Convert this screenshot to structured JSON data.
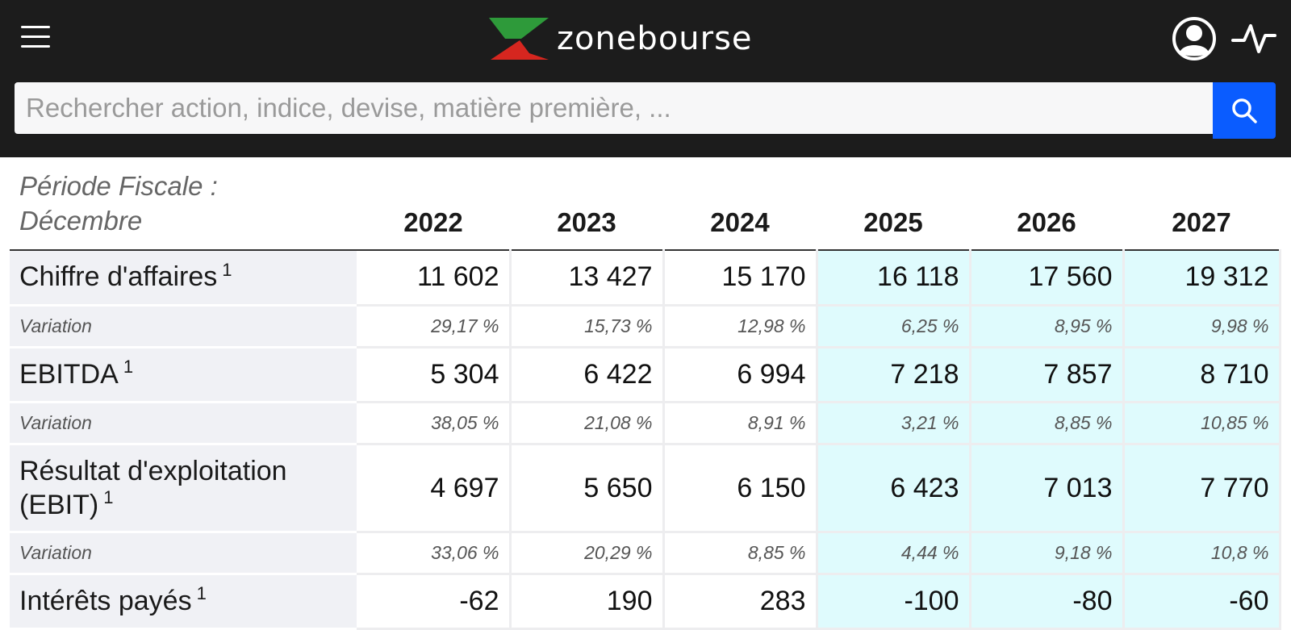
{
  "header": {
    "brand": "zonebourse",
    "icons": {
      "menu": "hamburger-icon",
      "user": "user-icon",
      "activity": "activity-pulse-icon",
      "search": "search-icon"
    },
    "colors": {
      "background": "#1c1c1c",
      "logo_green": "#2e9a3a",
      "logo_red": "#d6261f",
      "search_button": "#0a5cff"
    }
  },
  "search": {
    "placeholder": "Rechercher action, indice, devise, matière première, ..."
  },
  "table": {
    "period_label_line1": "Période Fiscale :",
    "period_label_line2": "Décembre",
    "years": [
      "2022",
      "2023",
      "2024",
      "2025",
      "2026",
      "2027"
    ],
    "forecast_from_index": 3,
    "forecast_color": "#dffbfd",
    "rows": [
      {
        "label": "Chiffre d'affaires",
        "note": "1",
        "values": [
          "11 602",
          "13 427",
          "15 170",
          "16 118",
          "17 560",
          "19 312"
        ],
        "variation_label": "Variation",
        "variation": [
          "29,17 %",
          "15,73 %",
          "12,98 %",
          "6,25 %",
          "8,95 %",
          "9,98 %"
        ]
      },
      {
        "label": "EBITDA",
        "note": "1",
        "values": [
          "5 304",
          "6 422",
          "6 994",
          "7 218",
          "7 857",
          "8 710"
        ],
        "variation_label": "Variation",
        "variation": [
          "38,05 %",
          "21,08 %",
          "8,91 %",
          "3,21 %",
          "8,85 %",
          "10,85 %"
        ]
      },
      {
        "label_line1": "Résultat d'exploitation",
        "label_line2": "(EBIT)",
        "note": "1",
        "values": [
          "4 697",
          "5 650",
          "6 150",
          "6 423",
          "7 013",
          "7 770"
        ],
        "variation_label": "Variation",
        "variation": [
          "33,06 %",
          "20,29 %",
          "8,85 %",
          "4,44 %",
          "9,18 %",
          "10,8 %"
        ]
      },
      {
        "label": "Intérêts payés",
        "note": "1",
        "values": [
          "-62",
          "190",
          "283",
          "-100",
          "-80",
          "-60"
        ]
      }
    ]
  }
}
